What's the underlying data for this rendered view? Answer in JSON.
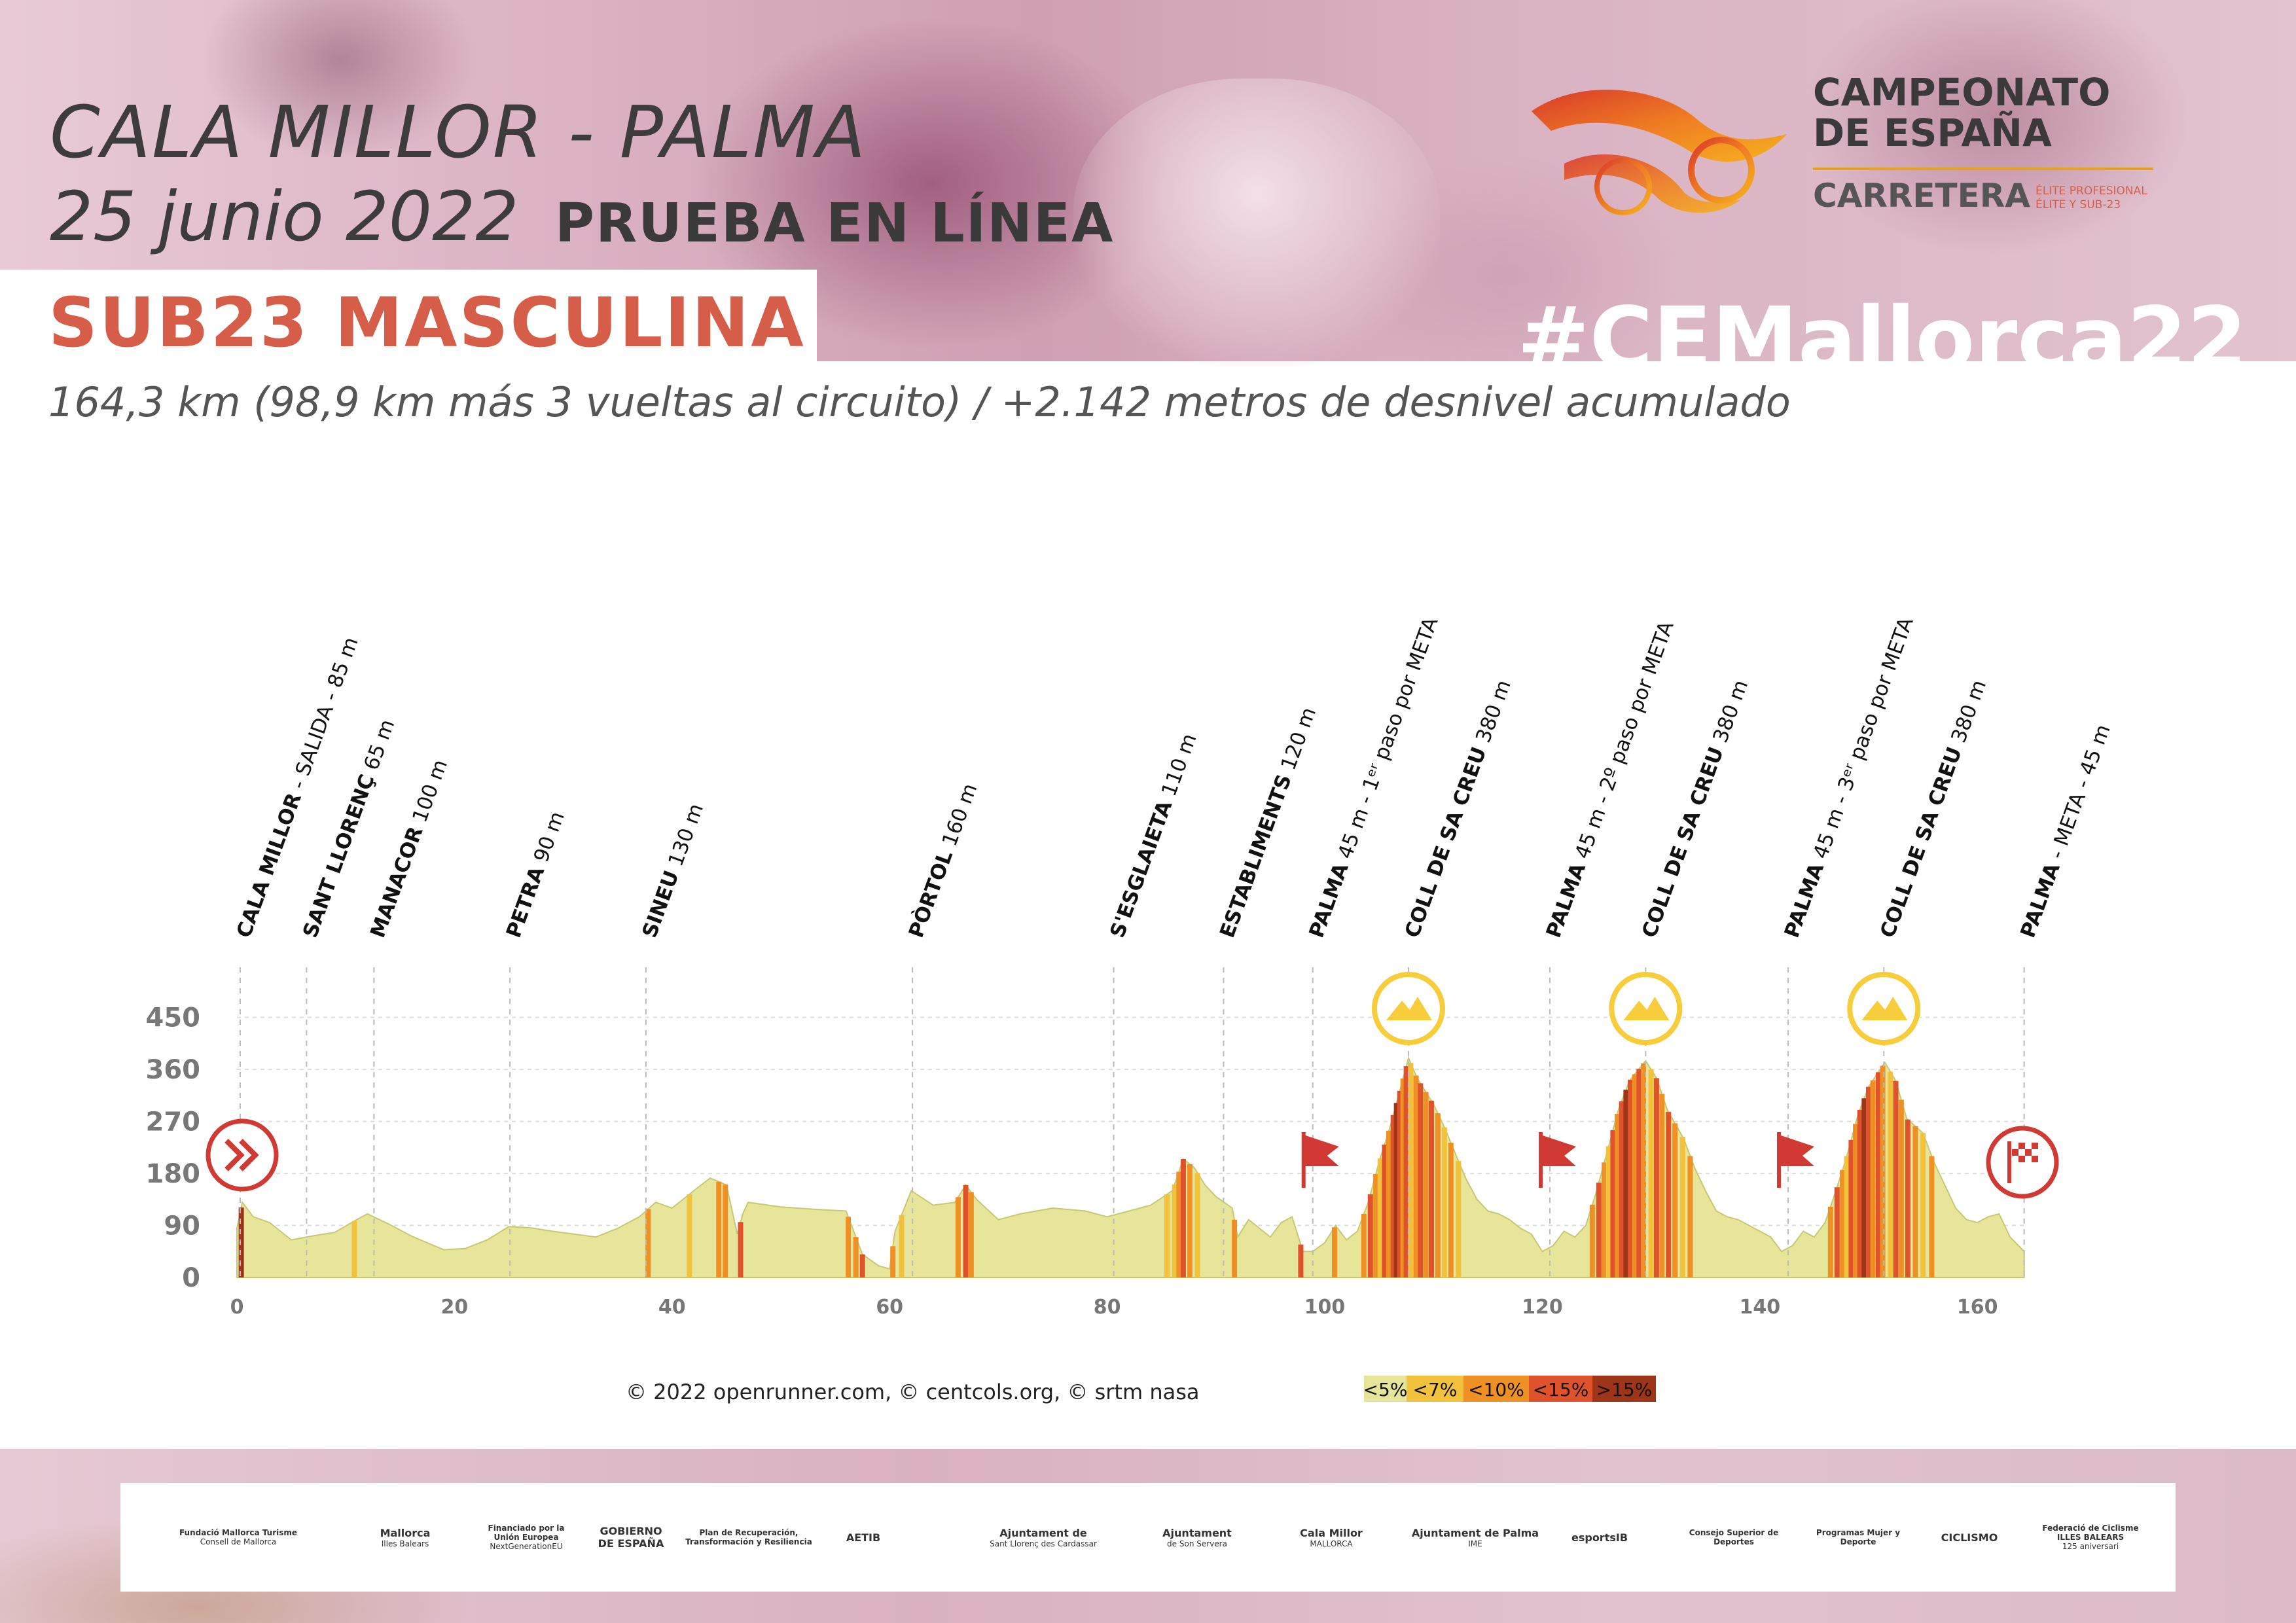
{
  "header": {
    "route": "CALA MILLOR - PALMA",
    "date": "25 junio 2022",
    "race_type": "PRUEBA EN LÍNEA",
    "category": "SUB23 MASCULINA",
    "hashtag": "#CEMallorca22",
    "summary": "164,3 km (98,9 km más 3 vueltas al circuito) / +2.142 metros de desnivel acumulado"
  },
  "logo": {
    "line1": "CAMPEONATO",
    "line2": "DE ESPAÑA",
    "line3": "CARRETERA",
    "line4a": "ÉLITE PROFESIONAL",
    "line4b": "ÉLITE Y SUB-23"
  },
  "colors": {
    "accent": "#d65e48",
    "profile_fill": "#e6e59a",
    "grade_5": "#e6e59a",
    "grade_7": "#f2c23c",
    "grade_10": "#ee9024",
    "grade_15": "#e0532a",
    "grade_max": "#9e3418",
    "climb_icon": "#f7cd3c",
    "marker_red": "#d03a32"
  },
  "chart_data": {
    "type": "area",
    "title": "",
    "xlabel": "",
    "ylabel": "",
    "xlim": [
      0,
      164.3
    ],
    "ylim": [
      0,
      450
    ],
    "x_ticks": [
      0,
      20,
      40,
      60,
      80,
      100,
      120,
      140,
      160
    ],
    "y_ticks": [
      0,
      90,
      180,
      270,
      360,
      450
    ],
    "grid": true,
    "profile": [
      [
        0,
        85
      ],
      [
        0.5,
        130
      ],
      [
        1.5,
        105
      ],
      [
        3,
        95
      ],
      [
        5,
        65
      ],
      [
        7,
        72
      ],
      [
        9,
        78
      ],
      [
        11,
        100
      ],
      [
        12,
        110
      ],
      [
        14,
        92
      ],
      [
        16,
        72
      ],
      [
        19,
        48
      ],
      [
        21,
        50
      ],
      [
        23,
        65
      ],
      [
        25,
        88
      ],
      [
        27,
        86
      ],
      [
        29,
        80
      ],
      [
        31,
        75
      ],
      [
        33,
        70
      ],
      [
        35,
        85
      ],
      [
        37,
        105
      ],
      [
        38.5,
        130
      ],
      [
        40,
        120
      ],
      [
        42,
        150
      ],
      [
        43.5,
        172
      ],
      [
        45,
        160
      ],
      [
        46,
        75
      ],
      [
        46.5,
        110
      ],
      [
        47,
        130
      ],
      [
        50,
        122
      ],
      [
        53,
        118
      ],
      [
        56,
        115
      ],
      [
        57.5,
        40
      ],
      [
        59,
        20
      ],
      [
        60,
        15
      ],
      [
        60.5,
        80
      ],
      [
        62,
        150
      ],
      [
        64,
        125
      ],
      [
        66,
        130
      ],
      [
        67,
        160
      ],
      [
        68,
        135
      ],
      [
        70,
        100
      ],
      [
        72,
        110
      ],
      [
        75,
        120
      ],
      [
        78,
        115
      ],
      [
        80,
        105
      ],
      [
        82,
        115
      ],
      [
        84,
        125
      ],
      [
        86,
        150
      ],
      [
        87,
        205
      ],
      [
        88,
        190
      ],
      [
        89,
        160
      ],
      [
        90,
        140
      ],
      [
        91.5,
        120
      ],
      [
        92,
        70
      ],
      [
        93,
        100
      ],
      [
        94,
        85
      ],
      [
        95,
        70
      ],
      [
        96,
        95
      ],
      [
        97,
        105
      ],
      [
        98,
        45
      ],
      [
        98.9,
        45
      ],
      [
        100,
        60
      ],
      [
        101,
        90
      ],
      [
        102,
        65
      ],
      [
        103,
        80
      ],
      [
        104,
        130
      ],
      [
        105,
        200
      ],
      [
        106,
        260
      ],
      [
        107,
        330
      ],
      [
        107.7,
        380
      ],
      [
        108.5,
        345
      ],
      [
        110,
        300
      ],
      [
        111,
        260
      ],
      [
        112,
        215
      ],
      [
        113,
        170
      ],
      [
        114,
        135
      ],
      [
        115,
        115
      ],
      [
        116,
        110
      ],
      [
        117,
        100
      ],
      [
        118,
        85
      ],
      [
        119,
        75
      ],
      [
        120,
        45
      ],
      [
        121,
        55
      ],
      [
        122,
        80
      ],
      [
        123,
        70
      ],
      [
        124,
        90
      ],
      [
        125,
        150
      ],
      [
        126,
        220
      ],
      [
        127,
        290
      ],
      [
        128,
        340
      ],
      [
        129.5,
        375
      ],
      [
        130.5,
        345
      ],
      [
        131.5,
        290
      ],
      [
        133,
        240
      ],
      [
        134,
        190
      ],
      [
        135,
        150
      ],
      [
        136,
        115
      ],
      [
        137,
        105
      ],
      [
        138,
        100
      ],
      [
        139,
        90
      ],
      [
        140,
        80
      ],
      [
        141,
        70
      ],
      [
        142,
        45
      ],
      [
        143,
        55
      ],
      [
        144,
        80
      ],
      [
        145,
        70
      ],
      [
        146,
        95
      ],
      [
        147,
        150
      ],
      [
        148,
        210
      ],
      [
        149,
        280
      ],
      [
        150,
        330
      ],
      [
        151.5,
        372
      ],
      [
        152.5,
        340
      ],
      [
        153.5,
        275
      ],
      [
        155,
        250
      ],
      [
        156,
        200
      ],
      [
        157,
        160
      ],
      [
        158,
        120
      ],
      [
        159,
        100
      ],
      [
        160,
        95
      ],
      [
        161,
        105
      ],
      [
        162,
        110
      ],
      [
        163,
        70
      ],
      [
        164.3,
        45
      ]
    ],
    "steep_segments": [
      {
        "x": 0.4,
        "grade": ">15%"
      },
      {
        "x": 10.8,
        "grade": "<7%"
      },
      {
        "x": 37.8,
        "grade": "<10%"
      },
      {
        "x": 41.6,
        "grade": "<7%"
      },
      {
        "x": 44.3,
        "grade": "<10%"
      },
      {
        "x": 44.9,
        "grade": "<10%"
      },
      {
        "x": 46.3,
        "grade": "<15%"
      },
      {
        "x": 56.2,
        "grade": "<10%"
      },
      {
        "x": 56.9,
        "grade": "<10%"
      },
      {
        "x": 57.5,
        "grade": "<15%"
      },
      {
        "x": 60.3,
        "grade": "<10%"
      },
      {
        "x": 61.1,
        "grade": "<7%"
      },
      {
        "x": 66.3,
        "grade": "<10%"
      },
      {
        "x": 67.0,
        "grade": "<15%"
      },
      {
        "x": 67.5,
        "grade": "<10%"
      },
      {
        "x": 85.5,
        "grade": "<7%"
      },
      {
        "x": 86.2,
        "grade": "<7%"
      },
      {
        "x": 86.6,
        "grade": "<10%"
      },
      {
        "x": 87.0,
        "grade": "<15%"
      },
      {
        "x": 87.6,
        "grade": "<10%"
      },
      {
        "x": 88.3,
        "grade": "<7%"
      },
      {
        "x": 91.7,
        "grade": "<10%"
      },
      {
        "x": 97.8,
        "grade": "<15%"
      },
      {
        "x": 100.9,
        "grade": "<10%"
      },
      {
        "x": 103.6,
        "grade": "<10%"
      },
      {
        "x": 104.2,
        "grade": "<15%"
      },
      {
        "x": 104.7,
        "grade": "<10%"
      },
      {
        "x": 105.1,
        "grade": "<7%"
      },
      {
        "x": 105.5,
        "grade": "<15%"
      },
      {
        "x": 105.9,
        "grade": "<10%"
      },
      {
        "x": 106.3,
        "grade": "<15%"
      },
      {
        "x": 106.6,
        "grade": ">15%"
      },
      {
        "x": 106.9,
        "grade": "<15%"
      },
      {
        "x": 107.2,
        "grade": "<10%"
      },
      {
        "x": 107.5,
        "grade": "<15%"
      },
      {
        "x": 107.9,
        "grade": "<7%"
      },
      {
        "x": 108.4,
        "grade": "<10%"
      },
      {
        "x": 108.8,
        "grade": "<15%"
      },
      {
        "x": 109.3,
        "grade": "<10%"
      },
      {
        "x": 109.8,
        "grade": "<15%"
      },
      {
        "x": 110.4,
        "grade": "<10%"
      },
      {
        "x": 111.0,
        "grade": "<7%"
      },
      {
        "x": 111.6,
        "grade": "<10%"
      },
      {
        "x": 112.3,
        "grade": "<7%"
      },
      {
        "x": 124.6,
        "grade": "<10%"
      },
      {
        "x": 125.2,
        "grade": "<15%"
      },
      {
        "x": 125.7,
        "grade": "<10%"
      },
      {
        "x": 126.1,
        "grade": "<7%"
      },
      {
        "x": 126.5,
        "grade": "<15%"
      },
      {
        "x": 126.9,
        "grade": "<10%"
      },
      {
        "x": 127.3,
        "grade": "<15%"
      },
      {
        "x": 127.7,
        "grade": ">15%"
      },
      {
        "x": 128.1,
        "grade": "<15%"
      },
      {
        "x": 128.5,
        "grade": "<10%"
      },
      {
        "x": 128.9,
        "grade": "<15%"
      },
      {
        "x": 129.3,
        "grade": "<10%"
      },
      {
        "x": 130.0,
        "grade": "<7%"
      },
      {
        "x": 130.5,
        "grade": "<15%"
      },
      {
        "x": 131.0,
        "grade": "<10%"
      },
      {
        "x": 131.6,
        "grade": "<15%"
      },
      {
        "x": 132.2,
        "grade": "<10%"
      },
      {
        "x": 132.9,
        "grade": "<7%"
      },
      {
        "x": 133.6,
        "grade": "<10%"
      },
      {
        "x": 146.5,
        "grade": "<10%"
      },
      {
        "x": 147.1,
        "grade": "<15%"
      },
      {
        "x": 147.6,
        "grade": "<10%"
      },
      {
        "x": 148.0,
        "grade": "<7%"
      },
      {
        "x": 148.4,
        "grade": "<15%"
      },
      {
        "x": 148.8,
        "grade": "<10%"
      },
      {
        "x": 149.2,
        "grade": "<15%"
      },
      {
        "x": 149.6,
        "grade": ">15%"
      },
      {
        "x": 150.0,
        "grade": "<15%"
      },
      {
        "x": 150.4,
        "grade": "<10%"
      },
      {
        "x": 150.9,
        "grade": "<15%"
      },
      {
        "x": 151.3,
        "grade": "<10%"
      },
      {
        "x": 152.0,
        "grade": "<7%"
      },
      {
        "x": 152.5,
        "grade": "<15%"
      },
      {
        "x": 153.0,
        "grade": "<10%"
      },
      {
        "x": 153.6,
        "grade": "<15%"
      },
      {
        "x": 154.3,
        "grade": "<10%"
      },
      {
        "x": 155.0,
        "grade": "<7%"
      },
      {
        "x": 155.8,
        "grade": "<10%"
      }
    ],
    "waypoints": [
      {
        "x": 0.3,
        "name": "CALA MILLOR",
        "info": " - SALIDA - 85 m"
      },
      {
        "x": 6.4,
        "name": "SANT LLORENÇ",
        "info": " 65 m"
      },
      {
        "x": 12.6,
        "name": "MANACOR",
        "info": " 100 m"
      },
      {
        "x": 25.1,
        "name": "PETRA",
        "info": " 90 m"
      },
      {
        "x": 37.6,
        "name": "SINEU",
        "info": " 130 m"
      },
      {
        "x": 62.1,
        "name": "PÒRTOL",
        "info": " 160 m"
      },
      {
        "x": 80.6,
        "name": "S'ESGLAIETA",
        "info": " 110 m"
      },
      {
        "x": 90.7,
        "name": "ESTABLIMENTS",
        "info": " 120 m"
      },
      {
        "x": 98.9,
        "name": "PALMA",
        "info": " 45 m - 1ᵉʳ paso por META"
      },
      {
        "x": 107.7,
        "name": "COLL DE SA CREU",
        "info": " 380 m"
      },
      {
        "x": 120.7,
        "name": "PALMA",
        "info": " 45 m - 2º paso por META"
      },
      {
        "x": 129.5,
        "name": "COLL DE SA CREU",
        "info": " 380 m"
      },
      {
        "x": 142.6,
        "name": "PALMA",
        "info": " 45 m - 3ᵉʳ paso por META"
      },
      {
        "x": 151.4,
        "name": "COLL DE SA CREU",
        "info": " 380 m"
      },
      {
        "x": 164.3,
        "name": "PALMA",
        "info": " - META - 45 m"
      }
    ],
    "climb_markers": [
      107.7,
      129.5,
      151.4
    ],
    "pass_flags": [
      98.9,
      120.7,
      142.6
    ],
    "start_marker": 0,
    "finish_marker": 164.3,
    "legend": [
      "<5%",
      "<7%",
      "<10%",
      "<15%",
      ">15%"
    ]
  },
  "credits": "© 2022 openrunner.com, © centcols.org, © srtm nasa",
  "sponsors": [
    {
      "l1": "Fundació Mallorca Turisme",
      "l2": "Consell de Mallorca"
    },
    {
      "l1": "Mallorca",
      "l2": "Illes Balears"
    },
    {
      "l1": "Financiado por la Unión Europea",
      "l2": "NextGenerationEU"
    },
    {
      "l1": "GOBIERNO DE ESPAÑA",
      "l2": ""
    },
    {
      "l1": "Plan de Recuperación, Transformación y Resiliencia",
      "l2": ""
    },
    {
      "l1": "AETIB",
      "l2": ""
    },
    {
      "l1": "Ajuntament de",
      "l2": "Sant Llorenç des Cardassar"
    },
    {
      "l1": "Ajuntament",
      "l2": "de Son Servera"
    },
    {
      "l1": "Cala Millor",
      "l2": "MALLORCA"
    },
    {
      "l1": "Ajuntament de Palma",
      "l2": "IME"
    },
    {
      "l1": "esportsIB",
      "l2": ""
    },
    {
      "l1": "Consejo Superior de Deportes",
      "l2": ""
    },
    {
      "l1": "Programas Mujer y Deporte",
      "l2": ""
    },
    {
      "l1": "CICLISMO",
      "l2": ""
    },
    {
      "l1": "Federació de Ciclisme ILLES BALEARS",
      "l2": "125 aniversari"
    }
  ]
}
